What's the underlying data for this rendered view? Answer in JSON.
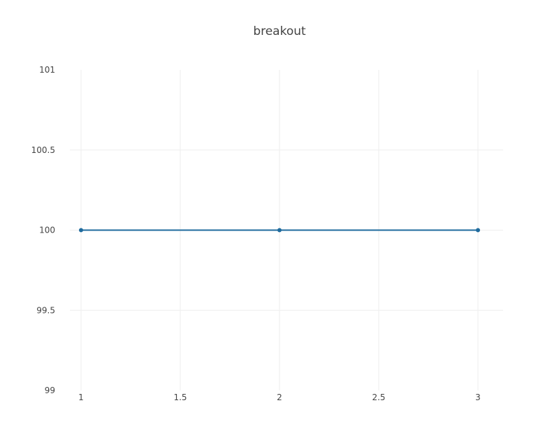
{
  "chart_data": {
    "type": "line",
    "title": "breakout",
    "xlabel": "",
    "ylabel": "",
    "x": [
      1,
      2,
      3
    ],
    "xlim": [
      1,
      3
    ],
    "ylim": [
      99,
      101
    ],
    "xticks": [
      1,
      1.5,
      2,
      2.5,
      3
    ],
    "xtick_labels": [
      "1",
      "1.5",
      "2",
      "2.5",
      "3"
    ],
    "yticks": [
      99,
      99.5,
      100,
      100.5,
      101
    ],
    "ytick_labels": [
      "99",
      "99.5",
      "100",
      "100.5",
      "101"
    ],
    "grid": true,
    "legend": "none",
    "series": [
      {
        "values": [
          100,
          100,
          100
        ],
        "color": "#1f6b9e",
        "mode": "lines+markers"
      }
    ]
  }
}
